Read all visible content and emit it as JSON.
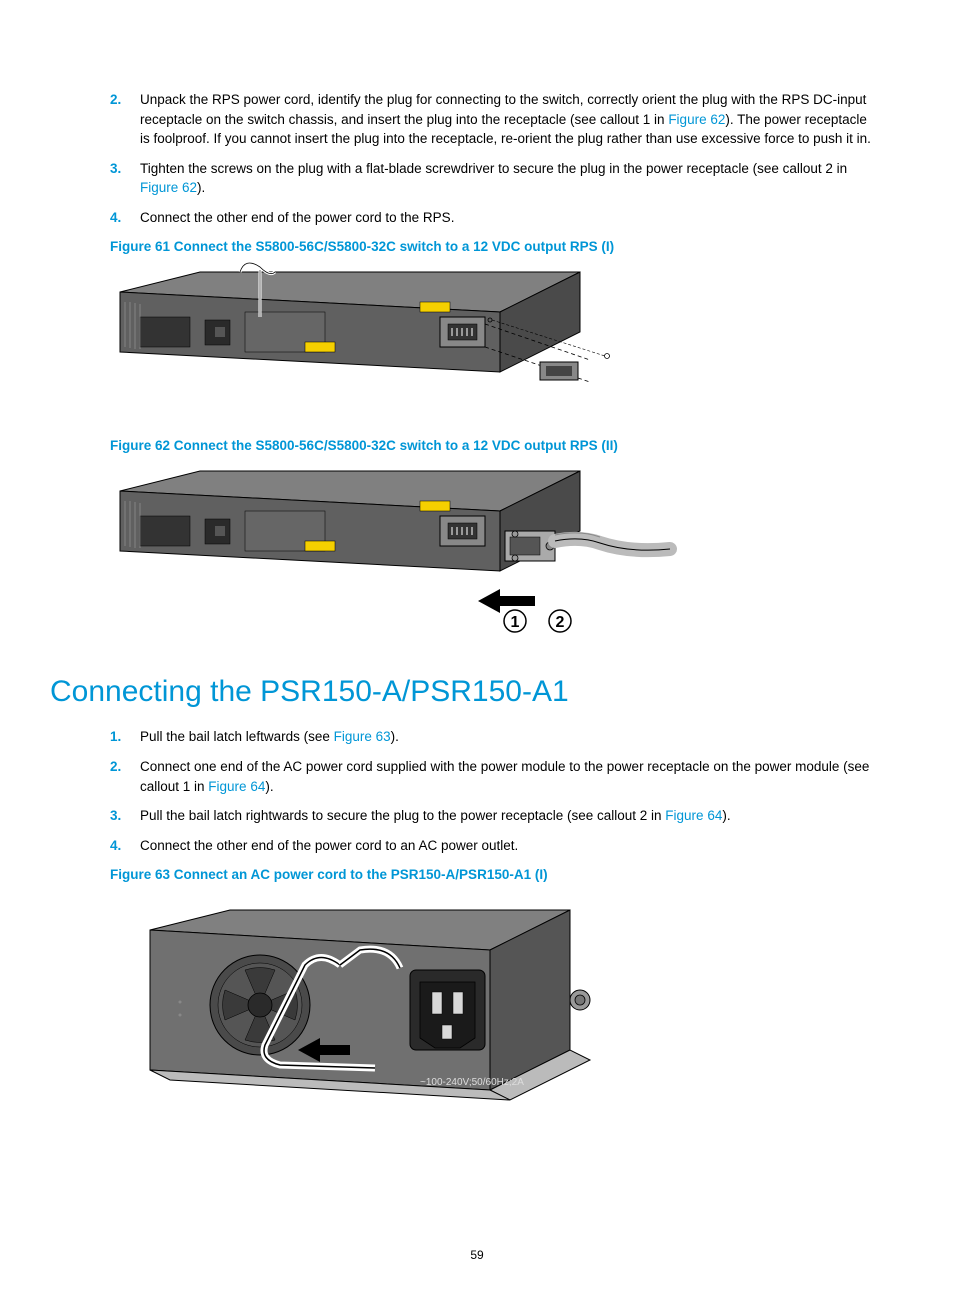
{
  "steps1": [
    {
      "num": "2.",
      "parts": [
        {
          "t": "Unpack the RPS power cord, identify the plug for connecting to the switch, correctly orient the plug with the RPS DC-input receptacle on the switch chassis, and insert the plug into the receptacle (see callout 1 in "
        },
        {
          "t": "Figure 62",
          "link": true
        },
        {
          "t": "). The power receptacle is foolproof. If you cannot insert the plug into the receptacle, re-orient the plug rather than use excessive force to push it in."
        }
      ]
    },
    {
      "num": "3.",
      "parts": [
        {
          "t": "Tighten the screws on the plug with a flat-blade screwdriver to secure the plug in the power receptacle (see callout 2 in "
        },
        {
          "t": "Figure 62",
          "link": true
        },
        {
          "t": ")."
        }
      ]
    },
    {
      "num": "4.",
      "parts": [
        {
          "t": "Connect the other end of the power cord to the RPS."
        }
      ]
    }
  ],
  "figure61_caption": "Figure 61 Connect the S5800-56C/S5800-32C switch to a 12 VDC output RPS (I)",
  "figure62_caption": "Figure 62 Connect the S5800-56C/S5800-32C switch to a 12 VDC output RPS (II)",
  "section_heading": "Connecting the PSR150-A/PSR150-A1",
  "steps2": [
    {
      "num": "1.",
      "parts": [
        {
          "t": "Pull the bail latch leftwards (see "
        },
        {
          "t": "Figure 63",
          "link": true
        },
        {
          "t": ")."
        }
      ]
    },
    {
      "num": "2.",
      "parts": [
        {
          "t": "Connect one end of the AC power cord supplied with the power module to the power receptacle on the power module (see callout 1 in "
        },
        {
          "t": "Figure 64",
          "link": true
        },
        {
          "t": ")."
        }
      ]
    },
    {
      "num": "3.",
      "parts": [
        {
          "t": "Pull the bail latch rightwards to secure the plug to the power receptacle (see callout 2 in "
        },
        {
          "t": "Figure 64",
          "link": true
        },
        {
          "t": ")."
        }
      ]
    },
    {
      "num": "4.",
      "parts": [
        {
          "t": "Connect the other end of the power cord to an AC power outlet."
        }
      ]
    }
  ],
  "figure63_caption": "Figure 63 Connect an AC power cord to the PSR150-A/PSR150-A1 (I)",
  "page_number": "59",
  "colors": {
    "accent": "#0096d6",
    "text": "#000000",
    "device_gray": "#808080",
    "device_dark": "#4a4a4a",
    "device_light": "#d8d8d8",
    "yellow": "#f5d000"
  }
}
